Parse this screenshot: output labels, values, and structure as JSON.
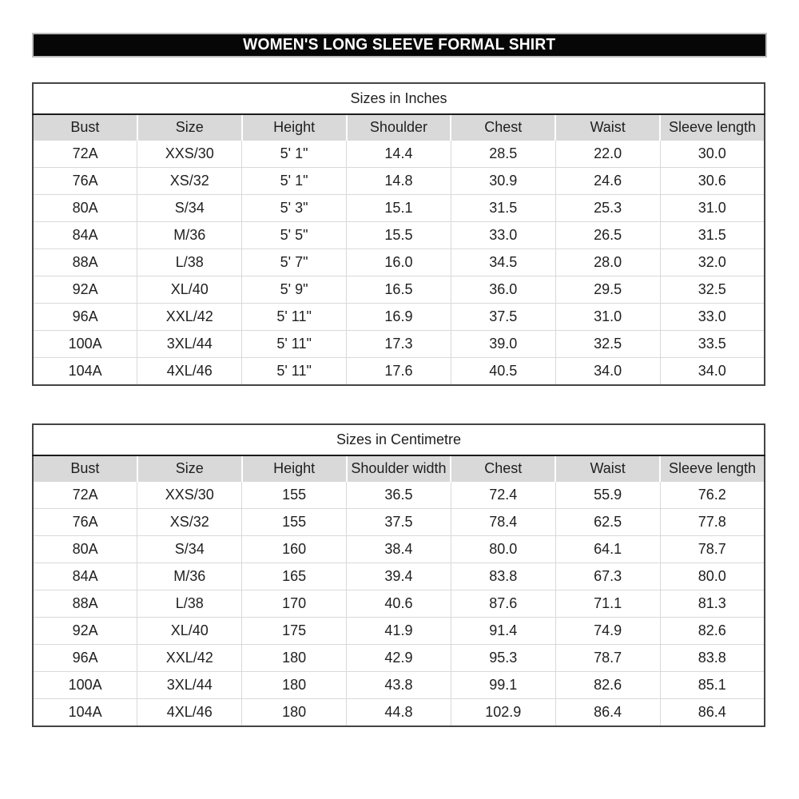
{
  "title": "WOMEN'S LONG SLEEVE FORMAL SHIRT",
  "colors": {
    "banner_bg": "#060606",
    "banner_text": "#ffffff",
    "banner_border": "#bdbdbd",
    "header_row_bg": "#d9d9d9",
    "gridline": "#d9d9d9",
    "outer_border": "#444444",
    "caption_divider": "#1c1c1c",
    "text": "#1f1f1f"
  },
  "tables": [
    {
      "caption": "Sizes in Inches",
      "headers": [
        "Bust",
        "Size",
        "Height",
        "Shoulder",
        "Chest",
        "Waist",
        "Sleeve length"
      ],
      "rows": [
        [
          "72A",
          "XXS/30",
          "5' 1\"",
          "14.4",
          "28.5",
          "22.0",
          "30.0"
        ],
        [
          "76A",
          "XS/32",
          "5' 1\"",
          "14.8",
          "30.9",
          "24.6",
          "30.6"
        ],
        [
          "80A",
          "S/34",
          "5' 3\"",
          "15.1",
          "31.5",
          "25.3",
          "31.0"
        ],
        [
          "84A",
          "M/36",
          "5' 5\"",
          "15.5",
          "33.0",
          "26.5",
          "31.5"
        ],
        [
          "88A",
          "L/38",
          "5' 7\"",
          "16.0",
          "34.5",
          "28.0",
          "32.0"
        ],
        [
          "92A",
          "XL/40",
          "5' 9\"",
          "16.5",
          "36.0",
          "29.5",
          "32.5"
        ],
        [
          "96A",
          "XXL/42",
          "5' 11\"",
          "16.9",
          "37.5",
          "31.0",
          "33.0"
        ],
        [
          "100A",
          "3XL/44",
          "5' 11\"",
          "17.3",
          "39.0",
          "32.5",
          "33.5"
        ],
        [
          "104A",
          "4XL/46",
          "5' 11\"",
          "17.6",
          "40.5",
          "34.0",
          "34.0"
        ]
      ]
    },
    {
      "caption": "Sizes in Centimetre",
      "headers": [
        "Bust",
        "Size",
        "Height",
        "Shoulder width",
        "Chest",
        "Waist",
        "Sleeve length"
      ],
      "rows": [
        [
          "72A",
          "XXS/30",
          "155",
          "36.5",
          "72.4",
          "55.9",
          "76.2"
        ],
        [
          "76A",
          "XS/32",
          "155",
          "37.5",
          "78.4",
          "62.5",
          "77.8"
        ],
        [
          "80A",
          "S/34",
          "160",
          "38.4",
          "80.0",
          "64.1",
          "78.7"
        ],
        [
          "84A",
          "M/36",
          "165",
          "39.4",
          "83.8",
          "67.3",
          "80.0"
        ],
        [
          "88A",
          "L/38",
          "170",
          "40.6",
          "87.6",
          "71.1",
          "81.3"
        ],
        [
          "92A",
          "XL/40",
          "175",
          "41.9",
          "91.4",
          "74.9",
          "82.6"
        ],
        [
          "96A",
          "XXL/42",
          "180",
          "42.9",
          "95.3",
          "78.7",
          "83.8"
        ],
        [
          "100A",
          "3XL/44",
          "180",
          "43.8",
          "99.1",
          "82.6",
          "85.1"
        ],
        [
          "104A",
          "4XL/46",
          "180",
          "44.8",
          "102.9",
          "86.4",
          "86.4"
        ]
      ]
    }
  ]
}
